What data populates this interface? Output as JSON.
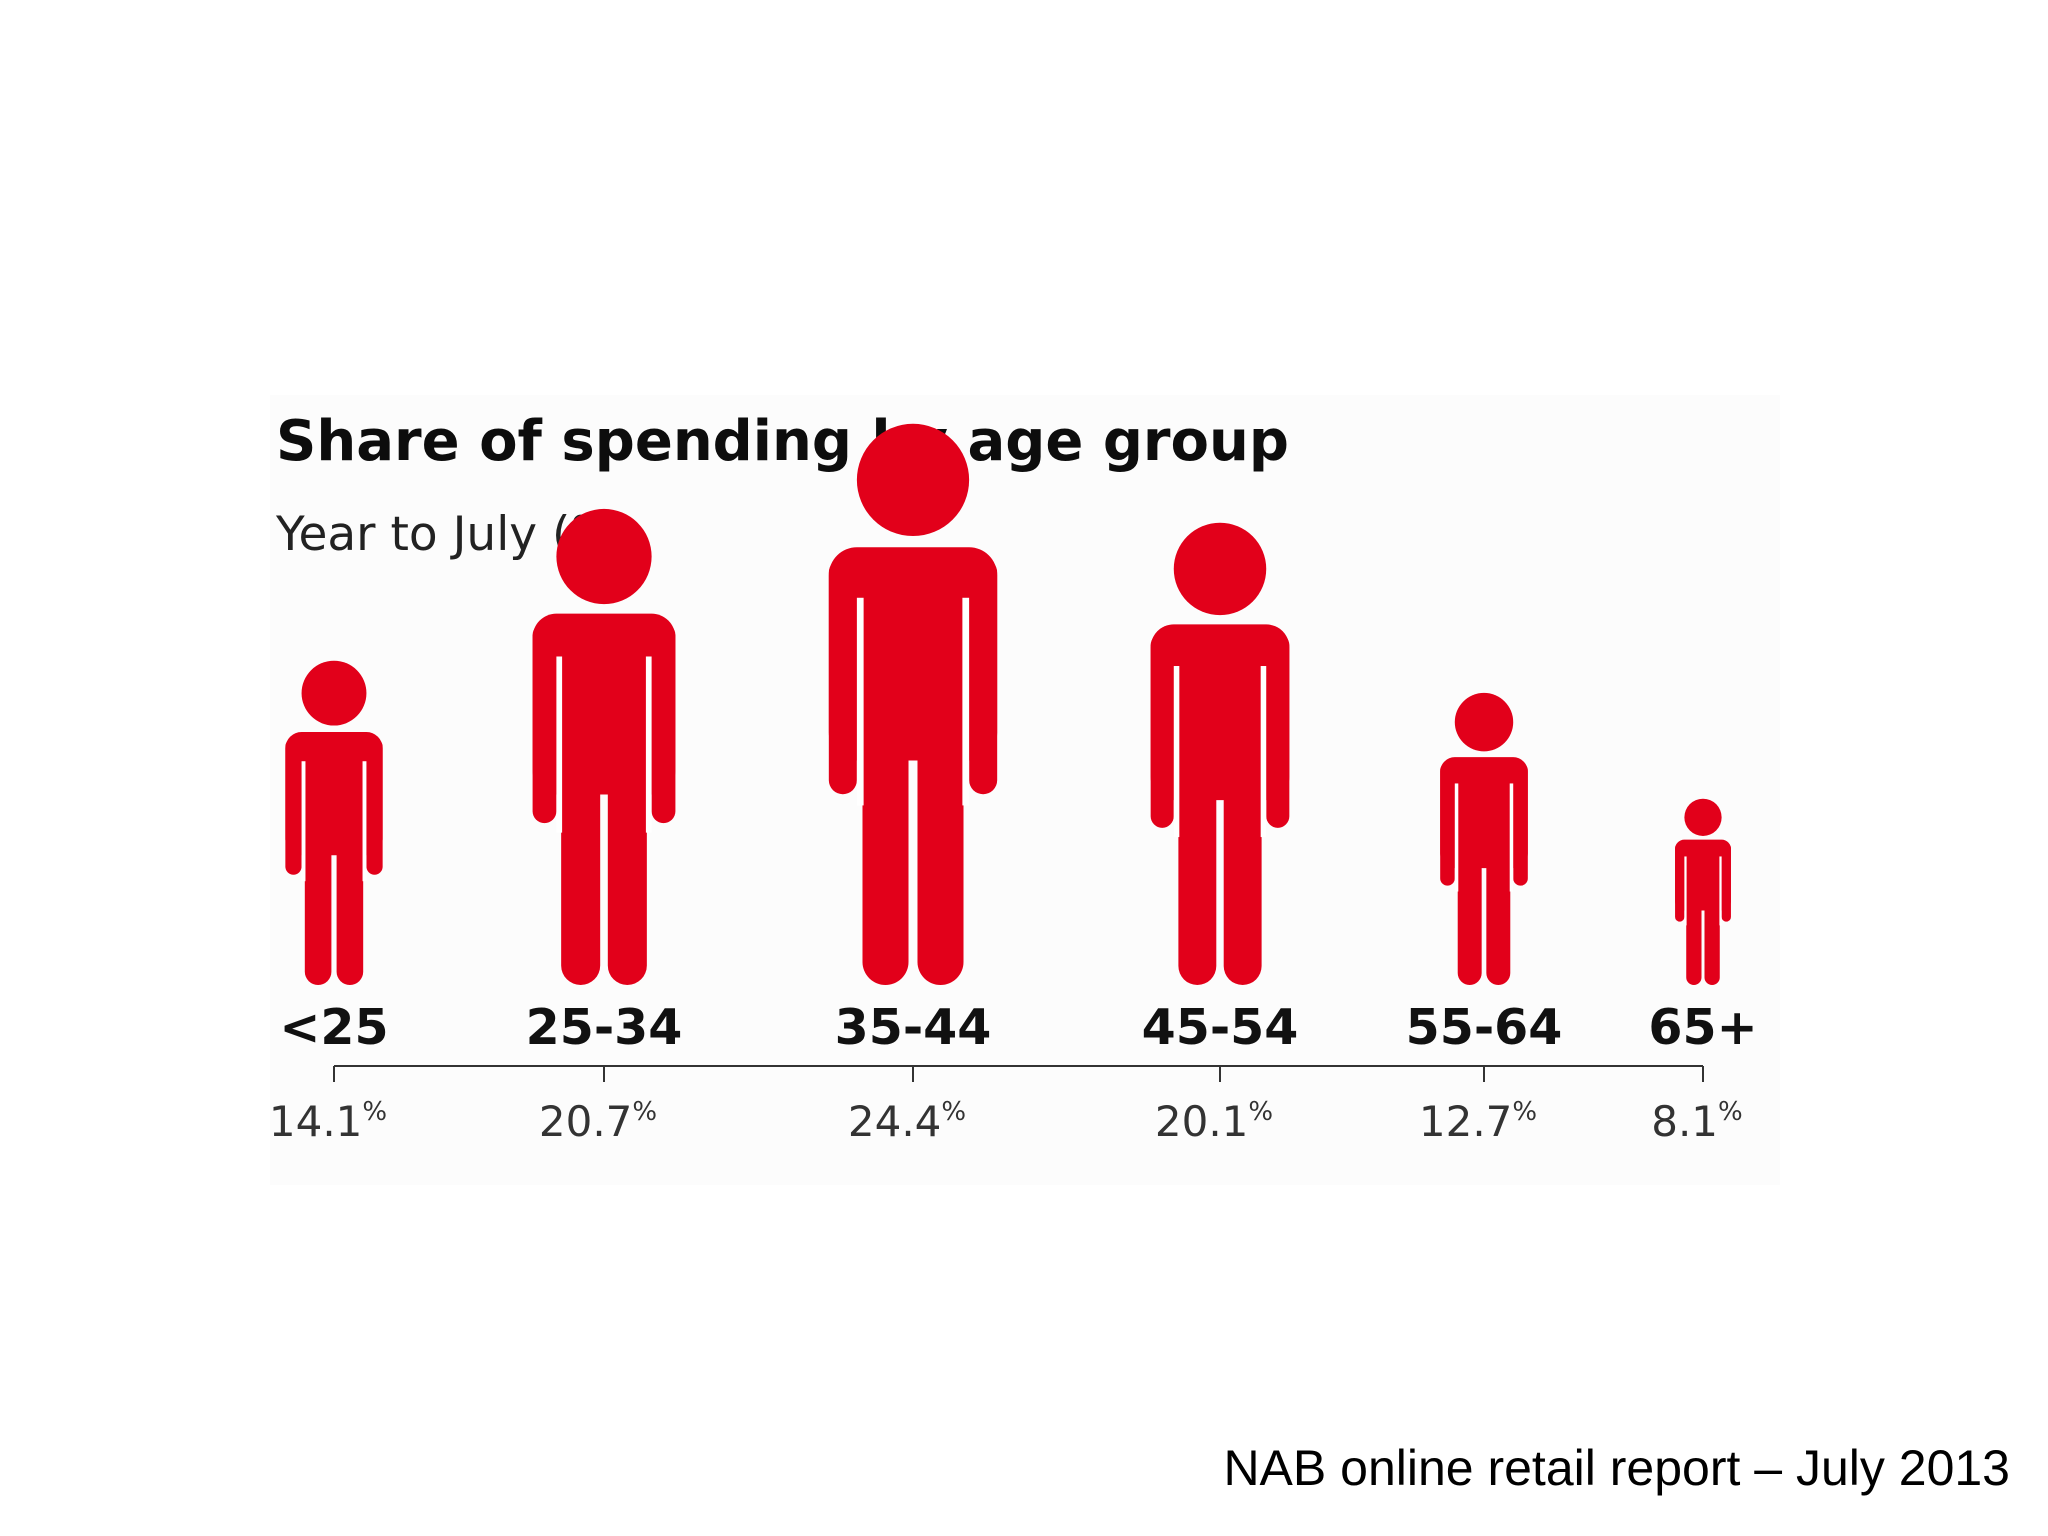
{
  "chart_data": {
    "type": "bar",
    "title": "Share of spending by age group",
    "subtitle": "Year to July (%)",
    "categories": [
      "<25",
      "25-34",
      "35-44",
      "45-54",
      "55-64",
      "65+"
    ],
    "values": [
      14.1,
      20.7,
      24.4,
      20.1,
      12.7,
      8.1
    ],
    "value_labels": [
      "14.1",
      "20.7",
      "24.4",
      "20.1",
      "12.7",
      "8.1"
    ],
    "value_suffix": "%",
    "color": "#e2001a",
    "mark": "person-pictogram"
  },
  "source": "NAB online retail report – July 2013"
}
